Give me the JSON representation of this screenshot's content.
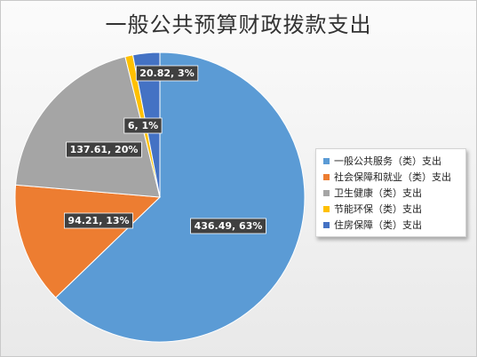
{
  "chart_data": {
    "type": "pie",
    "title": "一般公共预算财政拨款支出",
    "start_angle_deg": 0,
    "direction": "clockwise",
    "legend_position": "right",
    "slices": [
      {
        "name": "一般公共服务（类）支出",
        "value": 436.49,
        "percent": "63%",
        "label": "436.49, 63%",
        "color": "#5B9BD5"
      },
      {
        "name": "社会保障和就业（类）支出",
        "value": 94.21,
        "percent": "13%",
        "label": "94.21, 13%",
        "color": "#ED7D31"
      },
      {
        "name": "卫生健康（类）支出",
        "value": 137.61,
        "percent": "20%",
        "label": "137.61, 20%",
        "color": "#A5A5A5"
      },
      {
        "name": "节能环保（类）支出",
        "value": 6,
        "percent": "1%",
        "label": "6, 1%",
        "color": "#FFC000"
      },
      {
        "name": "住房保障（类）支出",
        "value": 20.82,
        "percent": "3%",
        "label": "20.82, 3%",
        "color": "#4472C4"
      }
    ]
  }
}
